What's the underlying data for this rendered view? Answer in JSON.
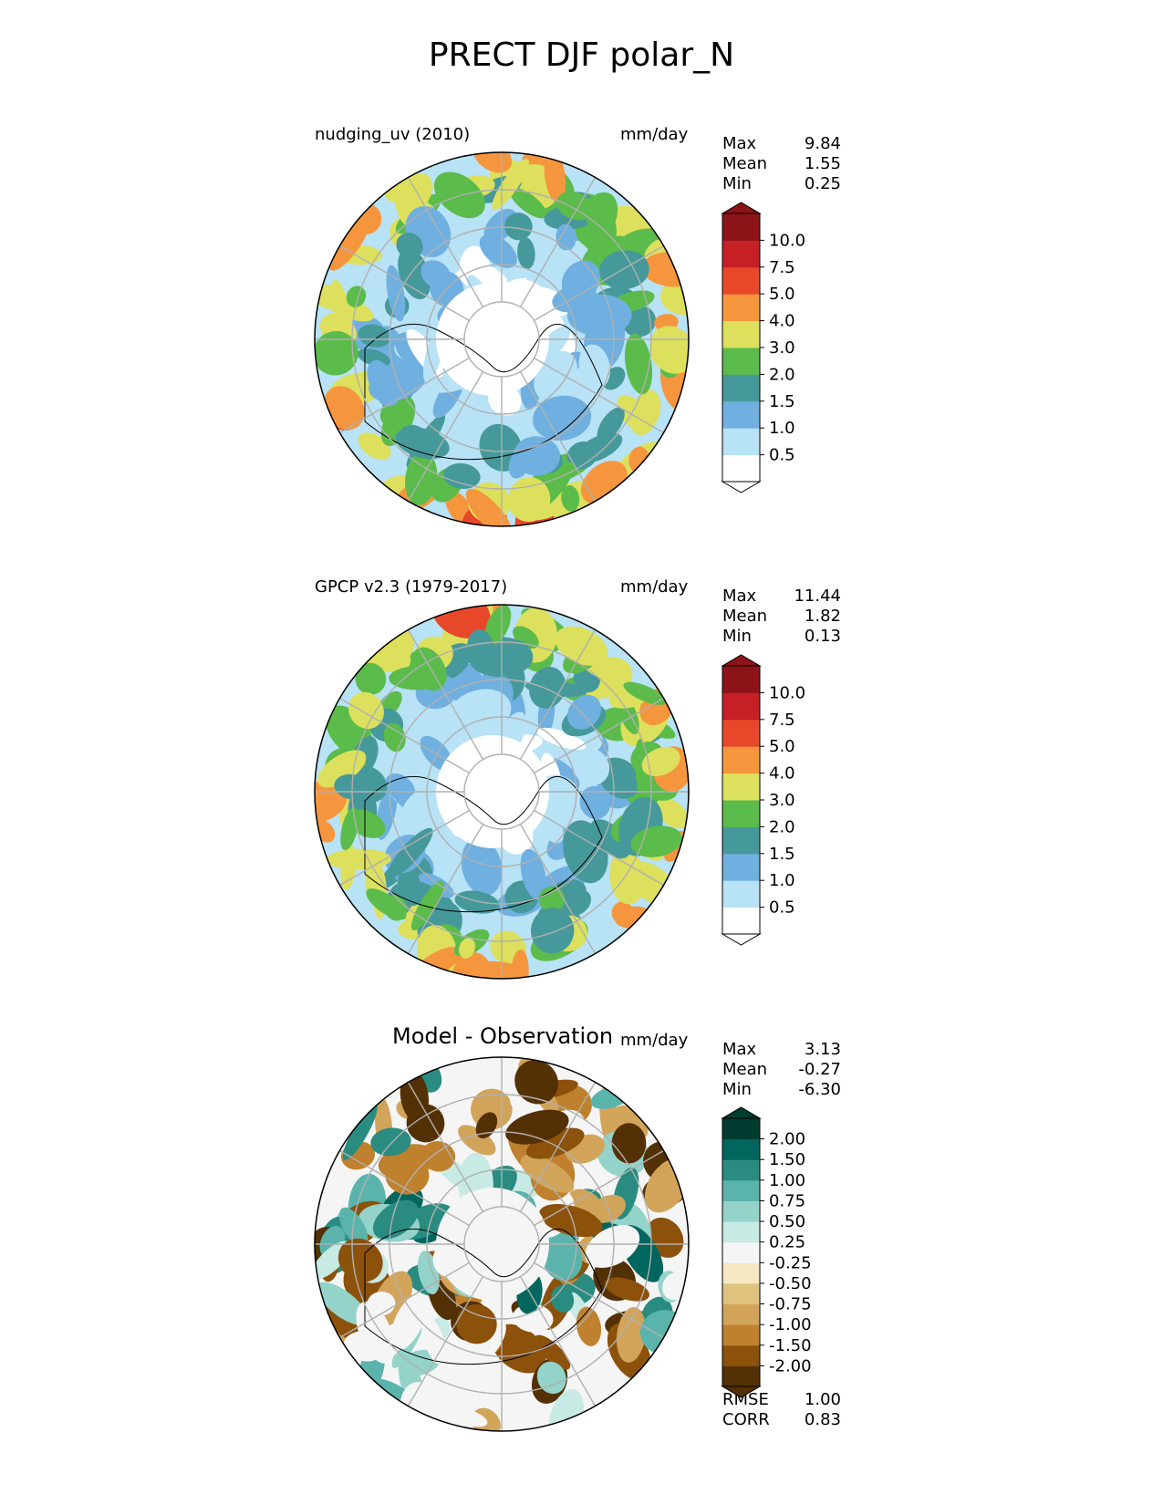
{
  "figure_title": "PRECT DJF polar_N",
  "panels": [
    {
      "title": "nudging_uv (2010)",
      "units": "mm/day",
      "stats": {
        "max_label": "Max",
        "max": "9.84",
        "mean_label": "Mean",
        "mean": "1.55",
        "min_label": "Min",
        "min": "0.25"
      }
    },
    {
      "title": "GPCP v2.3 (1979-2017)",
      "units": "mm/day",
      "stats": {
        "max_label": "Max",
        "max": "11.44",
        "mean_label": "Mean",
        "mean": "1.82",
        "min_label": "Min",
        "min": "0.13"
      }
    },
    {
      "title": "Model - Observation",
      "units": "mm/day",
      "stats": {
        "max_label": "Max",
        "max": "3.13",
        "mean_label": "Mean",
        "mean": "-0.27",
        "min_label": "Min",
        "min": "-6.30"
      }
    }
  ],
  "bottom_stats": {
    "rmse_label": "RMSE",
    "rmse": "1.00",
    "corr_label": "CORR",
    "corr": "0.83"
  },
  "chart_data": [
    {
      "type": "heatmap",
      "title": "nudging_uv (2010)",
      "units": "mm/day",
      "projection": "north polar stereographic",
      "colorbar": {
        "tick_labels": [
          "0.5",
          "1.0",
          "1.5",
          "2.0",
          "3.0",
          "4.0",
          "5.0",
          "7.5",
          "10.0"
        ],
        "colors": [
          "#ffffff",
          "#b8e2f5",
          "#6fb0e0",
          "#46999a",
          "#5bbb4b",
          "#dde05c",
          "#f5963f",
          "#e8482a",
          "#c71f26",
          "#8c1418"
        ],
        "extend": "both"
      },
      "max": 9.84,
      "mean": 1.55,
      "min": 0.25
    },
    {
      "type": "heatmap",
      "title": "GPCP v2.3 (1979-2017)",
      "units": "mm/day",
      "projection": "north polar stereographic",
      "colorbar": {
        "tick_labels": [
          "0.5",
          "1.0",
          "1.5",
          "2.0",
          "3.0",
          "4.0",
          "5.0",
          "7.5",
          "10.0"
        ],
        "colors": [
          "#ffffff",
          "#b8e2f5",
          "#6fb0e0",
          "#46999a",
          "#5bbb4b",
          "#dde05c",
          "#f5963f",
          "#e8482a",
          "#c71f26",
          "#8c1418"
        ],
        "extend": "both"
      },
      "max": 11.44,
      "mean": 1.82,
      "min": 0.13
    },
    {
      "type": "heatmap",
      "title": "Model - Observation",
      "units": "mm/day",
      "projection": "north polar stereographic",
      "colorbar": {
        "tick_labels": [
          "-2.00",
          "-1.50",
          "-1.00",
          "-0.75",
          "-0.50",
          "-0.25",
          "0.25",
          "0.50",
          "0.75",
          "1.00",
          "1.50",
          "2.00"
        ],
        "colors": [
          "#543005",
          "#8c510a",
          "#bf812d",
          "#d2a45a",
          "#dfc27d",
          "#f6e8c3",
          "#f5f5f5",
          "#c7eae5",
          "#93d3c9",
          "#5ab4ac",
          "#2a8c81",
          "#01665e",
          "#003c30"
        ],
        "extend": "both"
      },
      "max": 3.13,
      "mean": -0.27,
      "min": -6.3,
      "rmse": 1.0,
      "corr": 0.83
    }
  ]
}
